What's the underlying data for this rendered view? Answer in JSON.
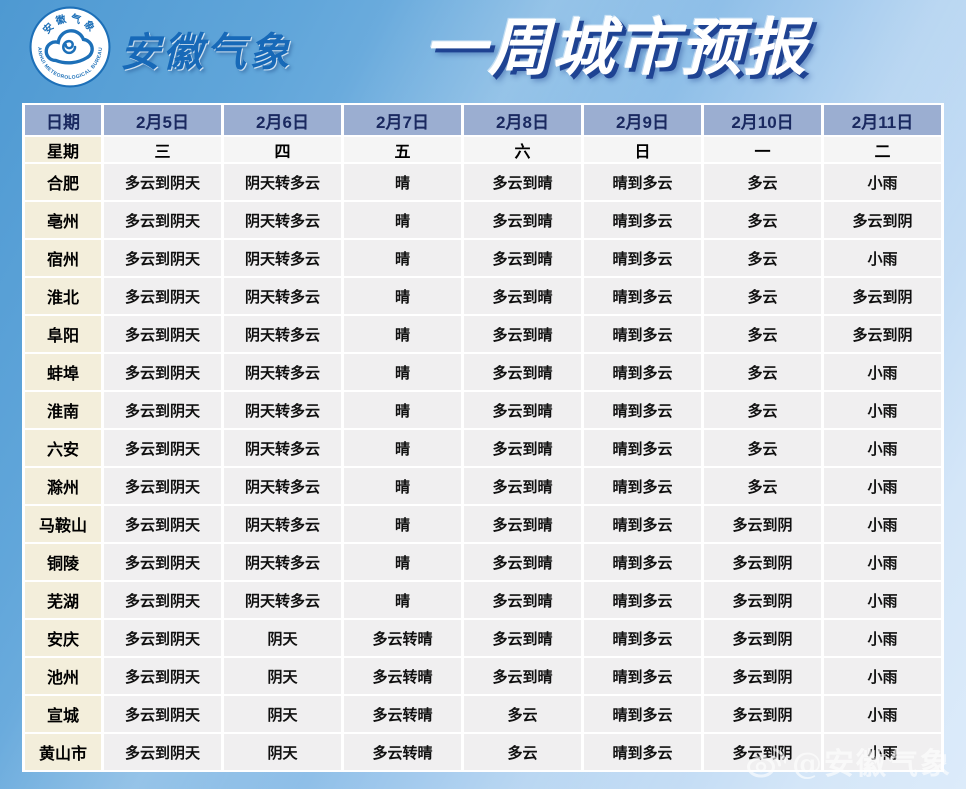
{
  "header": {
    "brand": "安徽气象",
    "title": "一周城市预报",
    "logo": {
      "ring_top_text": "安徽气象",
      "ring_bottom_text": "ANHUI METEOROLOGICAL BUREAU"
    }
  },
  "chart_data": {
    "type": "table",
    "title": "一周城市预报",
    "columns": [
      "日期",
      "2月5日",
      "2月6日",
      "2月7日",
      "2月8日",
      "2月9日",
      "2月10日",
      "2月11日"
    ],
    "weekday_row": [
      "星期",
      "三",
      "四",
      "五",
      "六",
      "日",
      "一",
      "二"
    ],
    "rows": [
      [
        "合肥",
        "多云到阴天",
        "阴天转多云",
        "晴",
        "多云到晴",
        "晴到多云",
        "多云",
        "小雨"
      ],
      [
        "亳州",
        "多云到阴天",
        "阴天转多云",
        "晴",
        "多云到晴",
        "晴到多云",
        "多云",
        "多云到阴"
      ],
      [
        "宿州",
        "多云到阴天",
        "阴天转多云",
        "晴",
        "多云到晴",
        "晴到多云",
        "多云",
        "小雨"
      ],
      [
        "淮北",
        "多云到阴天",
        "阴天转多云",
        "晴",
        "多云到晴",
        "晴到多云",
        "多云",
        "多云到阴"
      ],
      [
        "阜阳",
        "多云到阴天",
        "阴天转多云",
        "晴",
        "多云到晴",
        "晴到多云",
        "多云",
        "多云到阴"
      ],
      [
        "蚌埠",
        "多云到阴天",
        "阴天转多云",
        "晴",
        "多云到晴",
        "晴到多云",
        "多云",
        "小雨"
      ],
      [
        "淮南",
        "多云到阴天",
        "阴天转多云",
        "晴",
        "多云到晴",
        "晴到多云",
        "多云",
        "小雨"
      ],
      [
        "六安",
        "多云到阴天",
        "阴天转多云",
        "晴",
        "多云到晴",
        "晴到多云",
        "多云",
        "小雨"
      ],
      [
        "滁州",
        "多云到阴天",
        "阴天转多云",
        "晴",
        "多云到晴",
        "晴到多云",
        "多云",
        "小雨"
      ],
      [
        "马鞍山",
        "多云到阴天",
        "阴天转多云",
        "晴",
        "多云到晴",
        "晴到多云",
        "多云到阴",
        "小雨"
      ],
      [
        "铜陵",
        "多云到阴天",
        "阴天转多云",
        "晴",
        "多云到晴",
        "晴到多云",
        "多云到阴",
        "小雨"
      ],
      [
        "芜湖",
        "多云到阴天",
        "阴天转多云",
        "晴",
        "多云到晴",
        "晴到多云",
        "多云到阴",
        "小雨"
      ],
      [
        "安庆",
        "多云到阴天",
        "阴天",
        "多云转晴",
        "多云到晴",
        "晴到多云",
        "多云到阴",
        "小雨"
      ],
      [
        "池州",
        "多云到阴天",
        "阴天",
        "多云转晴",
        "多云到晴",
        "晴到多云",
        "多云到阴",
        "小雨"
      ],
      [
        "宣城",
        "多云到阴天",
        "阴天",
        "多云转晴",
        "多云",
        "晴到多云",
        "多云到阴",
        "小雨"
      ],
      [
        "黄山市",
        "多云到阴天",
        "阴天",
        "多云转晴",
        "多云",
        "晴到多云",
        "多云到阴",
        "小雨"
      ]
    ]
  },
  "watermark": {
    "text": "@安徽气象"
  },
  "colors": {
    "background_top": "#4e99d2",
    "background_bottom": "#dcebfa",
    "header_row_bg": "#9baed1",
    "header_row_text": "#1a2960",
    "city_column_bg": "#f3eedb",
    "forecast_cell_bg": "#f0eff0",
    "weekday_row_bg": "#f5f5f5",
    "brand_blue": "#1769b8",
    "title_text": "#ffffff",
    "title_shadow": "#1a3e8f",
    "gridline": "#ffffff"
  }
}
